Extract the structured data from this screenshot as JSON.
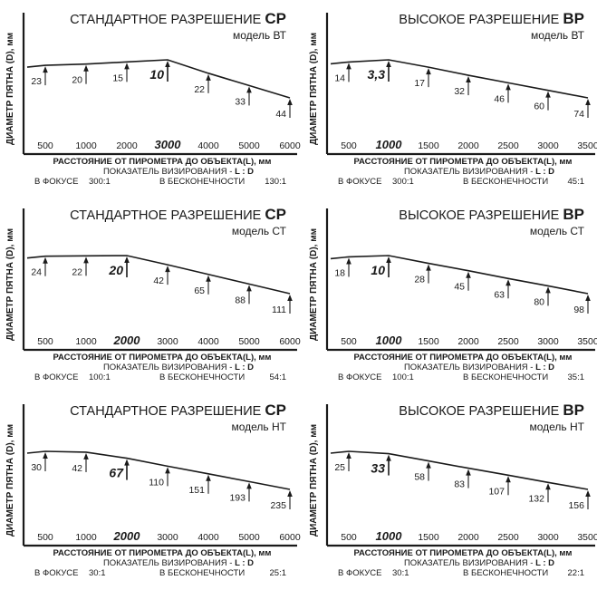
{
  "colors": {
    "ink": "#1a1a1a",
    "background": "#ffffff"
  },
  "common": {
    "ylabel": "ДИАМЕТР ПЯТНА (D), мм",
    "xlabel": "РАССТОЯНИЕ ОТ ПИРОМЕТРА ДО ОБЪЕКТА(L), мм",
    "ratio_label": "ПОКАЗАТЕЛЬ ВИЗИРОВАНИЯ -",
    "ratio_symbol": "L : D",
    "focus_label": "В ФОКУСЕ",
    "infinity_label": "В БЕСКОНЕЧНОСТИ"
  },
  "chart_data": [
    {
      "type": "line",
      "title": "СТАНДАРТНОЕ РАЗРЕШЕНИЕ",
      "title_code": "СР",
      "model": "модель ВТ",
      "x": [
        "500",
        "1000",
        "2000",
        "3000",
        "4000",
        "5000",
        "6000"
      ],
      "focus_index": 3,
      "values": [
        23,
        20,
        15,
        10,
        22,
        33,
        44
      ],
      "value_labels": [
        "23",
        "20",
        "15",
        "10",
        "22",
        "33",
        "44"
      ],
      "focus_ratio": "300:1",
      "infinity_ratio": "130:1"
    },
    {
      "type": "line",
      "title": "ВЫСОКОЕ РАЗРЕШЕНИЕ",
      "title_code": "ВР",
      "model": "модель ВТ",
      "x": [
        "500",
        "1000",
        "1500",
        "2000",
        "2500",
        "3000",
        "3500"
      ],
      "focus_index": 1,
      "values": [
        14,
        3.3,
        17,
        32,
        46,
        60,
        74
      ],
      "value_labels": [
        "14",
        "3,3",
        "17",
        "32",
        "46",
        "60",
        "74"
      ],
      "focus_ratio": "300:1",
      "infinity_ratio": "45:1"
    },
    {
      "type": "line",
      "title": "СТАНДАРТНОЕ РАЗРЕШЕНИЕ",
      "title_code": "СР",
      "model": "модель СТ",
      "x": [
        "500",
        "1000",
        "2000",
        "3000",
        "4000",
        "5000",
        "6000"
      ],
      "focus_index": 2,
      "values": [
        24,
        22,
        20,
        42,
        65,
        88,
        111
      ],
      "value_labels": [
        "24",
        "22",
        "20",
        "42",
        "65",
        "88",
        "111"
      ],
      "focus_ratio": "100:1",
      "infinity_ratio": "54:1"
    },
    {
      "type": "line",
      "title": "ВЫСОКОЕ РАЗРЕШЕНИЕ",
      "title_code": "ВР",
      "model": "модель СТ",
      "x": [
        "500",
        "1000",
        "1500",
        "2000",
        "2500",
        "3000",
        "3500"
      ],
      "focus_index": 1,
      "values": [
        18,
        10,
        28,
        45,
        63,
        80,
        98
      ],
      "value_labels": [
        "18",
        "10",
        "28",
        "45",
        "63",
        "80",
        "98"
      ],
      "focus_ratio": "100:1",
      "infinity_ratio": "35:1"
    },
    {
      "type": "line",
      "title": "СТАНДАРТНОЕ РАЗРЕШЕНИЕ",
      "title_code": "СР",
      "model": "модель НТ",
      "x": [
        "500",
        "1000",
        "2000",
        "3000",
        "4000",
        "5000",
        "6000"
      ],
      "focus_index": 2,
      "values": [
        30,
        42,
        67,
        110,
        151,
        193,
        235
      ],
      "value_labels": [
        "30",
        "42",
        "67",
        "110",
        "151",
        "193",
        "235"
      ],
      "focus_ratio": "30:1",
      "infinity_ratio": "25:1"
    },
    {
      "type": "line",
      "title": "ВЫСОКОЕ РАЗРЕШЕНИЕ",
      "title_code": "ВР",
      "model": "модель НТ",
      "x": [
        "500",
        "1000",
        "1500",
        "2000",
        "2500",
        "3000",
        "3500"
      ],
      "focus_index": 1,
      "values": [
        25,
        33,
        58,
        83,
        107,
        132,
        156
      ],
      "value_labels": [
        "25",
        "33",
        "58",
        "83",
        "107",
        "132",
        "156"
      ],
      "focus_ratio": "30:1",
      "infinity_ratio": "22:1"
    }
  ]
}
